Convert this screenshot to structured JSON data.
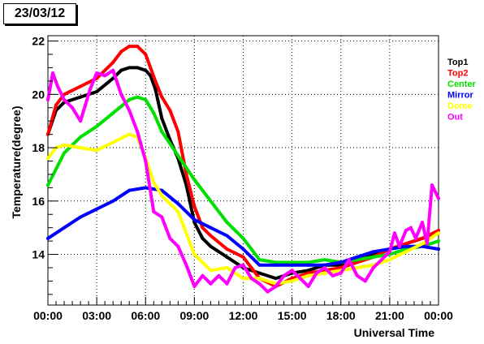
{
  "date_label": "23/03/12",
  "chart_data": {
    "type": "scatter",
    "xlabel": "Universal Time",
    "ylabel": "Temperature(degree)",
    "xlim": [
      0,
      24
    ],
    "ylim": [
      12.1,
      22.2
    ],
    "x_ticks": [
      0,
      3,
      6,
      9,
      12,
      15,
      18,
      21,
      24
    ],
    "x_tick_labels": [
      "00:00",
      "03:00",
      "06:00",
      "09:00",
      "12:00",
      "15:00",
      "18:00",
      "21:00",
      "00:00"
    ],
    "y_ticks": [
      14,
      16,
      18,
      20,
      22
    ],
    "y_tick_labels": [
      "14",
      "16",
      "18",
      "20",
      "22"
    ],
    "grid": true,
    "legend_position": "right",
    "series": [
      {
        "name": "Top1",
        "color": "#000000",
        "x": [
          0,
          0.5,
          1,
          2,
          3,
          4,
          4.5,
          5,
          5.5,
          6,
          6.3,
          6.6,
          7,
          7.5,
          8,
          8.5,
          9,
          9.5,
          10,
          11,
          12,
          13,
          14,
          15,
          16,
          17,
          18,
          19,
          20,
          21,
          22,
          23,
          24
        ],
        "y": [
          18.5,
          19.4,
          19.7,
          19.9,
          20.1,
          20.6,
          20.9,
          21.0,
          21.0,
          20.9,
          20.7,
          20.2,
          19.1,
          18.3,
          17.6,
          16.6,
          15.2,
          14.6,
          14.3,
          13.9,
          13.5,
          13.3,
          13.1,
          13.3,
          13.4,
          13.6,
          13.6,
          13.8,
          14.0,
          14.2,
          14.4,
          14.6,
          14.8
        ]
      },
      {
        "name": "Top2",
        "color": "#ff0000",
        "x": [
          0,
          0.5,
          1,
          2,
          3,
          4,
          4.5,
          5,
          5.5,
          6,
          6.3,
          6.6,
          7,
          7.5,
          8,
          8.5,
          9,
          9.5,
          10,
          11,
          12,
          12.5,
          13,
          14,
          15,
          16,
          17,
          18,
          19,
          20,
          21,
          22,
          23,
          24
        ],
        "y": [
          18.5,
          19.6,
          20.0,
          20.3,
          20.6,
          21.2,
          21.6,
          21.8,
          21.8,
          21.5,
          21.0,
          20.5,
          19.9,
          19.4,
          18.6,
          17.0,
          15.8,
          15.0,
          14.7,
          14.2,
          13.9,
          13.5,
          13.1,
          12.8,
          13.1,
          13.3,
          13.4,
          13.5,
          13.7,
          13.9,
          14.2,
          14.4,
          14.6,
          14.9
        ]
      },
      {
        "name": "Center",
        "color": "#00e000",
        "x": [
          0,
          1,
          2,
          3,
          4,
          5,
          5.5,
          6,
          6.5,
          7,
          8,
          9,
          10,
          11,
          12,
          13,
          14,
          15,
          16,
          17,
          18,
          19,
          20,
          21,
          22,
          23,
          24
        ],
        "y": [
          16.6,
          17.8,
          18.4,
          18.8,
          19.3,
          19.8,
          19.9,
          19.8,
          19.3,
          18.6,
          17.7,
          16.8,
          16.0,
          15.2,
          14.6,
          13.8,
          13.7,
          13.7,
          13.7,
          13.8,
          13.7,
          13.8,
          13.9,
          14.0,
          14.2,
          14.3,
          14.5
        ]
      },
      {
        "name": "Mirror",
        "color": "#0000ff",
        "x": [
          0,
          1,
          2,
          3,
          4,
          5,
          6,
          7,
          8,
          9,
          10,
          11,
          12,
          13,
          14,
          15,
          16,
          17,
          18,
          19,
          20,
          21,
          22,
          23,
          24
        ],
        "y": [
          14.6,
          15.0,
          15.4,
          15.7,
          16.0,
          16.4,
          16.5,
          16.4,
          15.9,
          15.3,
          15.0,
          14.7,
          14.2,
          13.6,
          13.6,
          13.6,
          13.6,
          13.6,
          13.7,
          13.9,
          14.1,
          14.2,
          14.3,
          14.3,
          14.2
        ]
      },
      {
        "name": "Dome",
        "color": "#ffff00",
        "x": [
          0,
          0.5,
          1,
          2,
          3,
          4,
          5,
          5.5,
          6,
          6.5,
          7,
          8,
          9,
          10,
          11,
          12,
          13,
          14,
          15,
          16,
          17,
          18,
          19,
          20,
          21,
          22,
          23,
          24
        ],
        "y": [
          17.6,
          18.0,
          18.1,
          18.0,
          17.9,
          18.2,
          18.5,
          18.4,
          17.6,
          16.7,
          16.2,
          15.6,
          14.0,
          13.4,
          13.5,
          13.1,
          13.1,
          12.9,
          13.0,
          13.2,
          13.3,
          13.4,
          13.5,
          13.6,
          13.8,
          14.1,
          14.4,
          14.8
        ]
      },
      {
        "name": "Out",
        "color": "#ff00ff",
        "x": [
          0,
          0.3,
          0.6,
          1,
          1.5,
          2,
          2.3,
          2.6,
          3,
          3.5,
          4,
          4.5,
          5,
          5.5,
          6,
          6.5,
          7,
          7.5,
          8,
          8.5,
          9,
          9.5,
          10,
          10.5,
          11,
          11.5,
          12,
          12.5,
          13,
          13.5,
          14,
          14.5,
          15,
          15.5,
          16,
          16.5,
          17,
          17.5,
          18,
          18.5,
          19,
          19.5,
          20,
          20.5,
          21,
          21.3,
          21.6,
          22,
          22.3,
          22.6,
          23,
          23.3,
          23.6,
          24
        ],
        "y": [
          19.8,
          20.8,
          20.3,
          19.8,
          19.5,
          19.0,
          19.6,
          20.2,
          20.8,
          20.7,
          20.9,
          20.0,
          19.4,
          18.6,
          17.5,
          15.6,
          15.4,
          14.6,
          14.3,
          13.6,
          12.8,
          13.2,
          12.9,
          13.2,
          12.9,
          13.5,
          13.6,
          13.1,
          12.9,
          12.6,
          12.8,
          13.2,
          13.4,
          13.1,
          12.8,
          13.3,
          13.5,
          13.2,
          13.3,
          13.8,
          13.2,
          13.0,
          13.5,
          13.8,
          14.1,
          14.8,
          14.3,
          14.9,
          15.0,
          14.6,
          15.2,
          14.4,
          16.6,
          16.1
        ]
      }
    ]
  }
}
